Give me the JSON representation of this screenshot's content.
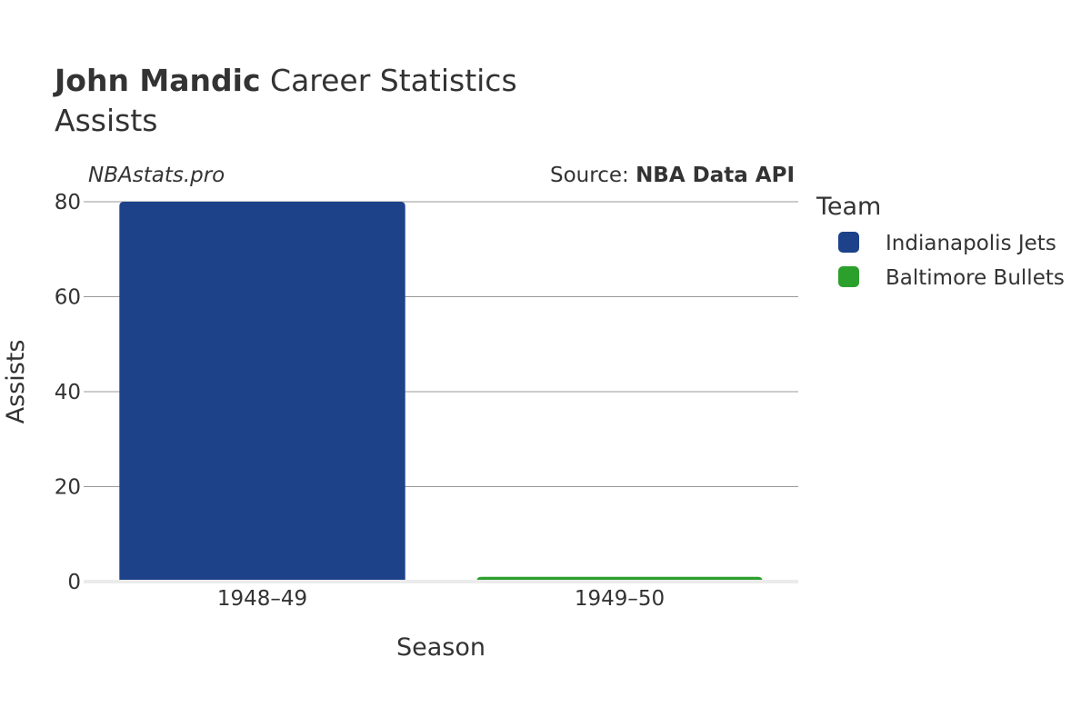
{
  "header": {
    "title_bold": "John Mandic",
    "title_rest": " Career Statistics",
    "subtitle": "Assists"
  },
  "credits": {
    "site": "NBAstats.pro",
    "source_prefix": "Source: ",
    "source_name": "NBA Data API"
  },
  "legend": {
    "title": "Team",
    "items": [
      {
        "label": "Indianapolis Jets",
        "color": "#1d428a"
      },
      {
        "label": "Baltimore Bullets",
        "color": "#2ca02c"
      }
    ]
  },
  "chart_data": {
    "type": "bar",
    "categories": [
      "1948–49",
      "1949–50"
    ],
    "series": [
      {
        "name": "Indianapolis Jets",
        "color": "#1d428a",
        "values": [
          80,
          null
        ]
      },
      {
        "name": "Baltimore Bullets",
        "color": "#2ca02c",
        "values": [
          null,
          1
        ]
      }
    ],
    "xlabel": "Season",
    "ylabel": "Assists",
    "ylim": [
      0,
      80
    ],
    "yticks": [
      0,
      20,
      40,
      60,
      80
    ],
    "grid": true,
    "legend_position": "right"
  }
}
